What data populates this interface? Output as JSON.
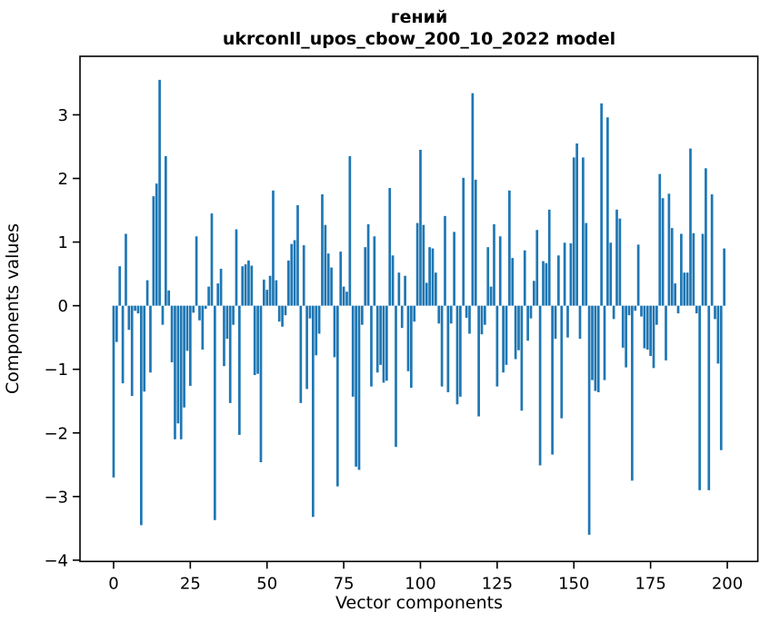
{
  "chart_data": {
    "type": "bar",
    "title_line1": "гений",
    "title_line2": "ukrconll_upos_cbow_200_10_2022 model",
    "xlabel": "Vector components",
    "ylabel": "Components values",
    "x_ticks": [
      0,
      25,
      50,
      75,
      100,
      125,
      150,
      175,
      200
    ],
    "y_ticks": [
      -4,
      -3,
      -2,
      -1,
      0,
      1,
      2,
      3
    ],
    "xlim": [
      -10.95,
      209.95
    ],
    "ylim": [
      -4.02,
      3.92
    ],
    "bar_color": "#1f77b4",
    "axis_color": "#000000",
    "n_components": 200,
    "values": [
      -2.7,
      -0.57,
      0.62,
      -1.22,
      1.13,
      -0.38,
      -1.42,
      -0.08,
      -0.12,
      -3.45,
      -1.35,
      0.4,
      -1.05,
      1.72,
      1.92,
      3.55,
      -0.3,
      2.35,
      0.24,
      -0.89,
      -2.1,
      -1.85,
      -2.1,
      -1.6,
      -0.71,
      -1.26,
      -0.11,
      1.09,
      -0.23,
      -0.69,
      -0.05,
      0.3,
      1.45,
      -3.37,
      0.35,
      0.58,
      -0.95,
      -0.52,
      -1.53,
      -0.3,
      1.2,
      -2.03,
      0.62,
      0.65,
      0.71,
      0.63,
      -1.09,
      -1.07,
      -2.46,
      0.41,
      0.25,
      0.47,
      1.81,
      0.4,
      -0.25,
      -0.33,
      -0.15,
      0.71,
      0.97,
      1.03,
      1.58,
      -1.53,
      0.95,
      -1.31,
      -0.2,
      -3.32,
      -0.78,
      -0.44,
      1.75,
      1.27,
      0.82,
      0.6,
      -0.81,
      -2.84,
      0.85,
      0.3,
      0.22,
      2.35,
      -1.43,
      -2.53,
      -2.58,
      -0.3,
      0.92,
      1.28,
      -1.27,
      1.09,
      -1.05,
      -0.93,
      -1.21,
      -1.18,
      1.85,
      0.79,
      -2.22,
      0.52,
      -0.35,
      0.47,
      -1.03,
      -1.29,
      -0.25,
      1.3,
      2.45,
      1.27,
      0.36,
      0.92,
      0.9,
      0.52,
      -0.28,
      -1.27,
      1.41,
      -1.36,
      -0.28,
      1.16,
      -1.55,
      -1.43,
      2.01,
      -0.19,
      -0.44,
      3.34,
      1.98,
      -1.74,
      -0.45,
      -0.3,
      0.92,
      0.3,
      1.28,
      -1.27,
      1.09,
      -1.05,
      -0.93,
      1.81,
      0.75,
      -0.84,
      -0.7,
      -1.65,
      0.87,
      -0.55,
      -0.2,
      0.39,
      1.19,
      -2.51,
      0.7,
      0.67,
      1.51,
      -2.34,
      -0.52,
      0.79,
      -1.77,
      0.99,
      -0.5,
      0.98,
      2.33,
      2.55,
      -0.52,
      2.33,
      1.3,
      -3.6,
      -1.17,
      -1.34,
      -1.36,
      3.18,
      -1.17,
      2.96,
      0.99,
      -0.21,
      1.51,
      1.37,
      -0.66,
      -0.97,
      -0.15,
      -2.75,
      -0.08,
      0.96,
      -0.17,
      -0.67,
      -0.69,
      -0.79,
      -0.98,
      -0.3,
      2.07,
      1.69,
      -0.86,
      1.76,
      1.22,
      0.35,
      -0.12,
      1.13,
      0.52,
      0.52,
      2.47,
      1.14,
      -0.12,
      -2.9,
      1.13,
      2.16,
      -2.9,
      1.75,
      -0.21,
      -0.91,
      -2.27,
      0.9
    ]
  }
}
